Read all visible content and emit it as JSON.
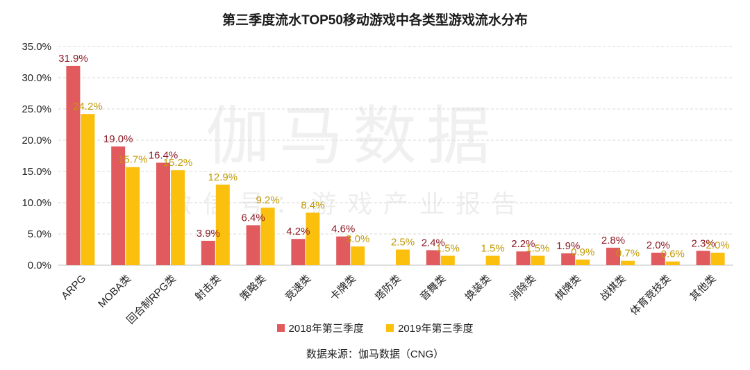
{
  "chart_data": {
    "type": "bar",
    "title": "第三季度流水TOP50移动游戏中各类型游戏流水分布",
    "categories": [
      "ARPG",
      "MOBA类",
      "回合制RPG类",
      "射击类",
      "策略类",
      "竞速类",
      "卡牌类",
      "塔防类",
      "音舞类",
      "换装类",
      "消除类",
      "棋牌类",
      "战棋类",
      "体育竞技类",
      "其他类"
    ],
    "series": [
      {
        "name": "2018年第三季度",
        "color": "#e05a5e",
        "label_color": "#8b1a24",
        "values": [
          31.9,
          19.0,
          16.4,
          3.9,
          6.4,
          4.2,
          4.6,
          null,
          2.4,
          null,
          2.2,
          1.9,
          2.8,
          2.0,
          2.3
        ],
        "labels": [
          "31.9%",
          "19.0%",
          "16.4%",
          "3.9%",
          "6.4%",
          "4.2%",
          "4.6%",
          "",
          "2.4%",
          "",
          "2.2%",
          "1.9%",
          "2.8%",
          "2.0%",
          "2.3%"
        ]
      },
      {
        "name": "2019年第三季度",
        "color": "#fbbf0e",
        "label_color": "#c09a05",
        "values": [
          24.2,
          15.7,
          15.2,
          12.9,
          9.2,
          8.4,
          3.0,
          2.5,
          1.5,
          1.5,
          1.5,
          0.9,
          0.7,
          0.6,
          2.0
        ],
        "labels": [
          "24.2%",
          "15.7%",
          "15.2%",
          "12.9%",
          "9.2%",
          "8.4%",
          "3.0%",
          "2.5%",
          "1.5%",
          "1.5%",
          "1.5%",
          "0.9%",
          "0.7%",
          "0.6%",
          "2.0%"
        ]
      }
    ],
    "ylim": [
      0,
      35
    ],
    "yticks": [
      0,
      5,
      10,
      15,
      20,
      25,
      30,
      35
    ],
    "ytick_labels": [
      "0.0%",
      "5.0%",
      "10.0%",
      "15.0%",
      "20.0%",
      "25.0%",
      "30.0%",
      "35.0%"
    ],
    "grid": true,
    "legend_position": "bottom",
    "source": "数据来源：伽马数据（CNG）"
  },
  "watermark": {
    "main": "伽马数据",
    "sub": "微信号：游戏产业报告"
  }
}
